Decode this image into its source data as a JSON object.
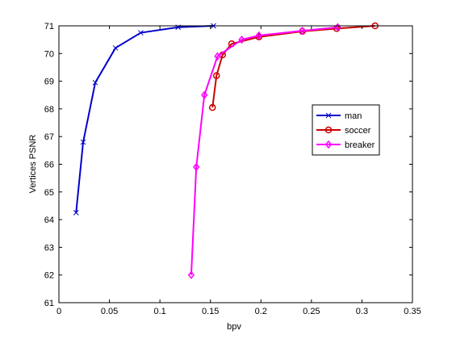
{
  "chart_data": {
    "type": "line",
    "title": "",
    "xlabel": "bpv",
    "ylabel": "Vertices PSNR",
    "xlim": [
      0,
      0.35
    ],
    "ylim": [
      61,
      71
    ],
    "xticks": [
      0,
      0.05,
      0.1,
      0.15,
      0.2,
      0.25,
      0.3,
      0.35
    ],
    "xtick_labels": [
      "0",
      "0.05",
      "0.1",
      "0.15",
      "0.2",
      "0.25",
      "0.3",
      "0.35"
    ],
    "yticks": [
      61,
      62,
      63,
      64,
      65,
      66,
      67,
      68,
      69,
      70,
      71
    ],
    "ytick_labels": [
      "61",
      "62",
      "63",
      "64",
      "65",
      "66",
      "67",
      "68",
      "69",
      "70",
      "71"
    ],
    "grid": false,
    "legend_position": "right",
    "series": [
      {
        "name": "man",
        "color": "#0000cc",
        "marker": "x",
        "x": [
          0.017,
          0.024,
          0.036,
          0.056,
          0.081,
          0.118,
          0.153
        ],
        "y": [
          64.25,
          66.8,
          68.95,
          70.2,
          70.75,
          70.95,
          71.0
        ]
      },
      {
        "name": "soccer",
        "color": "#cc0000",
        "marker": "o",
        "x": [
          0.152,
          0.156,
          0.162,
          0.171,
          0.198,
          0.241,
          0.275,
          0.313
        ],
        "y": [
          68.05,
          69.2,
          69.95,
          70.35,
          70.6,
          70.8,
          70.9,
          71.0
        ]
      },
      {
        "name": "breaker",
        "color": "#ff00ff",
        "marker": "diamond",
        "x": [
          0.131,
          0.136,
          0.144,
          0.157,
          0.181,
          0.198,
          0.241,
          0.276
        ],
        "y": [
          62.0,
          65.9,
          68.5,
          69.9,
          70.5,
          70.65,
          70.82,
          70.95
        ]
      }
    ]
  }
}
